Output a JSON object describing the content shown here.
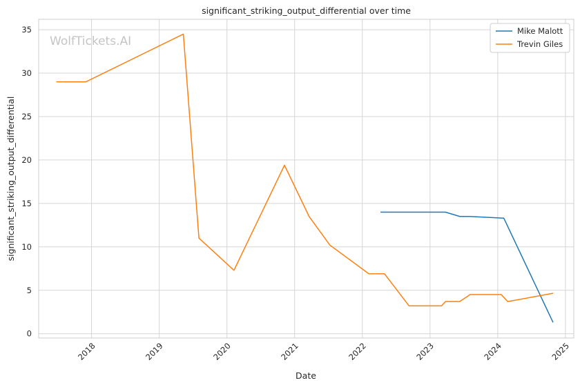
{
  "chart_data": {
    "type": "line",
    "title": "significant_striking_output_differential over time",
    "xlabel": "Date",
    "ylabel": "significant_striking_output_differential",
    "watermark": "WolfTickets.AI",
    "x_ticks": [
      "2018",
      "2019",
      "2020",
      "2021",
      "2022",
      "2023",
      "2024",
      "2025"
    ],
    "y_ticks": [
      "0",
      "5",
      "10",
      "15",
      "20",
      "25",
      "30",
      "35"
    ],
    "xlim": [
      "2017-03-22",
      "2025-02-15"
    ],
    "ylim": [
      -0.5,
      36.2
    ],
    "grid": true,
    "legend_position": "top-right",
    "series": [
      {
        "name": "Mike Malott",
        "color": "#1f77b4",
        "points": [
          {
            "x": "2022-04-09",
            "y": 14.0
          },
          {
            "x": "2023-03-25",
            "y": 14.0
          },
          {
            "x": "2023-06-10",
            "y": 13.5
          },
          {
            "x": "2023-08-01",
            "y": 13.5
          },
          {
            "x": "2024-02-03",
            "y": 13.3
          },
          {
            "x": "2024-10-26",
            "y": 1.3
          }
        ]
      },
      {
        "name": "Trevin Giles",
        "color": "#ff7f0e",
        "points": [
          {
            "x": "2017-06-25",
            "y": 29.0
          },
          {
            "x": "2017-12-01",
            "y": 29.0
          },
          {
            "x": "2019-05-11",
            "y": 34.5
          },
          {
            "x": "2019-08-03",
            "y": 11.0
          },
          {
            "x": "2020-02-08",
            "y": 7.3
          },
          {
            "x": "2020-11-07",
            "y": 19.4
          },
          {
            "x": "2021-03-20",
            "y": 13.5
          },
          {
            "x": "2021-07-10",
            "y": 10.2
          },
          {
            "x": "2022-02-05",
            "y": 6.9
          },
          {
            "x": "2022-04-30",
            "y": 6.9
          },
          {
            "x": "2022-09-10",
            "y": 3.2
          },
          {
            "x": "2023-03-04",
            "y": 3.2
          },
          {
            "x": "2023-03-25",
            "y": 3.7
          },
          {
            "x": "2023-06-10",
            "y": 3.7
          },
          {
            "x": "2023-08-05",
            "y": 4.5
          },
          {
            "x": "2024-01-20",
            "y": 4.5
          },
          {
            "x": "2024-02-24",
            "y": 3.7
          },
          {
            "x": "2024-10-26",
            "y": 4.65
          }
        ]
      }
    ]
  }
}
